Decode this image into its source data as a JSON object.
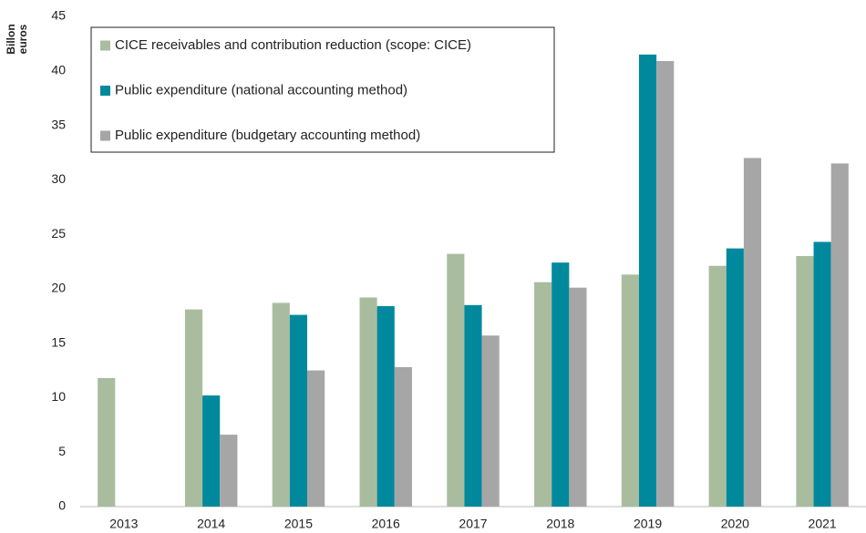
{
  "chart_data": {
    "type": "bar",
    "y_label": "Billon euros",
    "categories": [
      "2013",
      "2014",
      "2015",
      "2016",
      "2017",
      "2018",
      "2019",
      "2020",
      "2021"
    ],
    "series": [
      {
        "name": "CICE receivables and contribution reduction (scope: CICE)",
        "color": "#a9bd9e",
        "values": [
          11.8,
          18.1,
          18.7,
          19.2,
          23.2,
          20.6,
          21.3,
          22.1,
          23.0
        ]
      },
      {
        "name": "Public expenditure (national accounting method)",
        "color": "#00899c",
        "values": [
          null,
          10.2,
          17.6,
          18.4,
          18.5,
          22.4,
          41.5,
          23.7,
          24.3
        ]
      },
      {
        "name": "Public expenditure (budgetary accounting method)",
        "color": "#a6a6a6",
        "values": [
          null,
          6.6,
          12.5,
          12.8,
          15.7,
          20.1,
          40.9,
          32.0,
          31.5
        ]
      }
    ],
    "ylim": [
      0,
      45
    ],
    "yticks": [
      0,
      5,
      10,
      15,
      20,
      25,
      30,
      35,
      40,
      45
    ],
    "grid": false,
    "legend": "upper left"
  }
}
